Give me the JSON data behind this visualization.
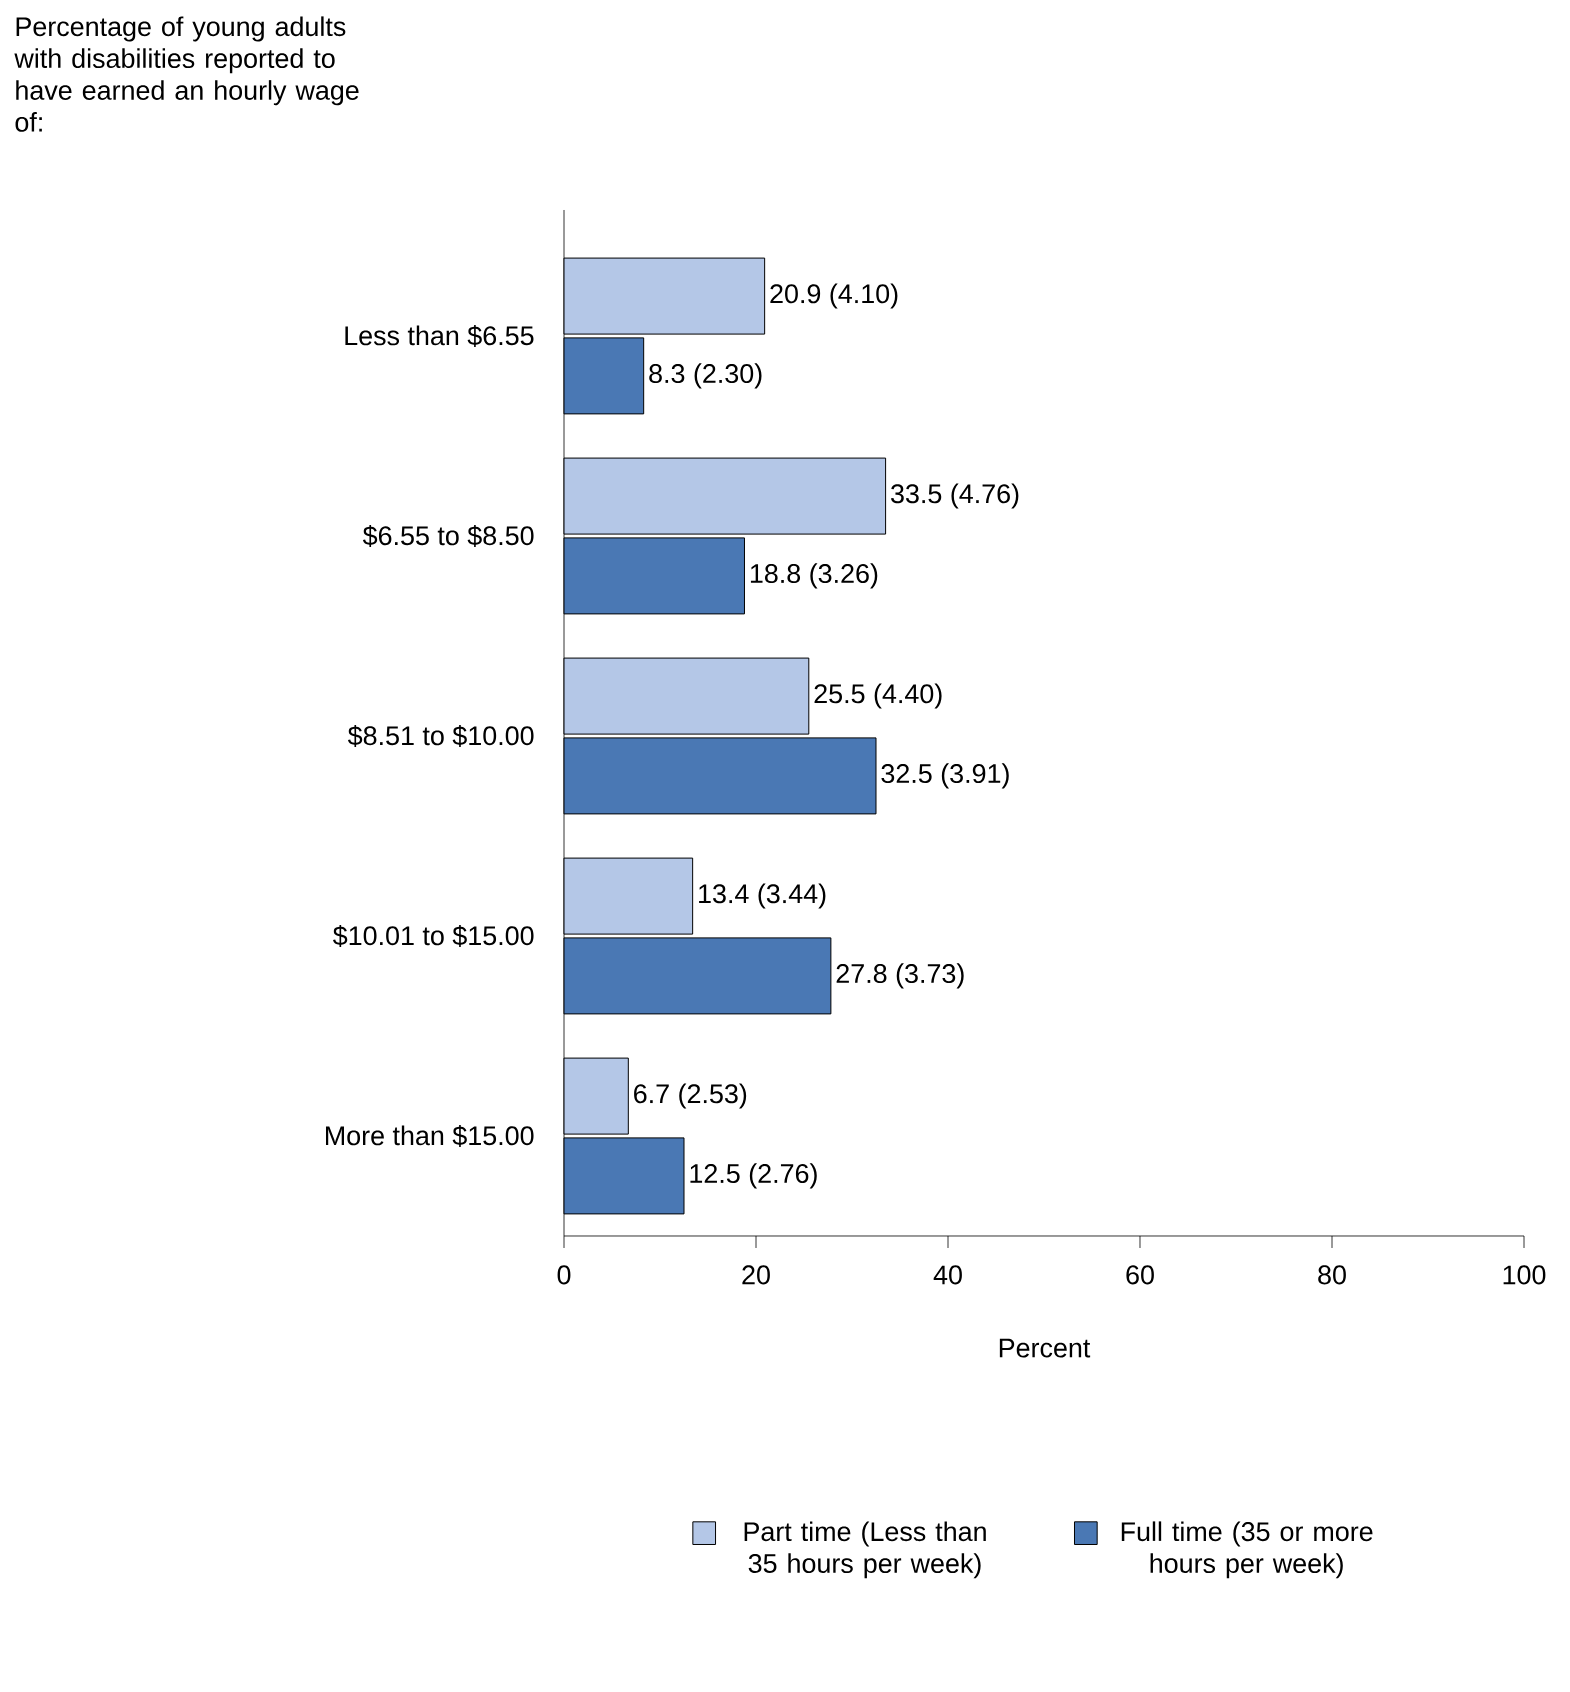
{
  "chart_data": {
    "type": "bar",
    "orientation": "horizontal",
    "title": "Percentage of young adults with disabilities reported to have earned an hourly wage of:",
    "xlabel": "Percent",
    "categories": [
      "Less than $6.55",
      "$6.55 to $8.50",
      "$8.51 to $10.00",
      "$10.01 to $15.00",
      "More than $15.00"
    ],
    "series": [
      {
        "name": "Part time (Less than 35 hours per week)",
        "color": "#b4c7e7",
        "values": [
          20.9,
          33.5,
          25.5,
          13.4,
          6.7
        ],
        "value_labels": [
          "20.9 (4.10)",
          "33.5 (4.76)",
          "25.5 (4.40)",
          "13.4 (3.44)",
          "6.7 (2.53)"
        ]
      },
      {
        "name": "Full time (35 or more hours per week)",
        "color": "#4a78b4",
        "values": [
          8.3,
          18.8,
          32.5,
          27.8,
          12.5
        ],
        "value_labels": [
          "8.3 (2.30)",
          "18.8 (3.26)",
          "32.5 (3.91)",
          "27.8 (3.73)",
          "12.5 (2.76)"
        ]
      }
    ],
    "xlim": [
      0,
      100
    ],
    "xticks": [
      0,
      20,
      40,
      60,
      80,
      100
    ],
    "grid": false,
    "legend": "bottom"
  }
}
